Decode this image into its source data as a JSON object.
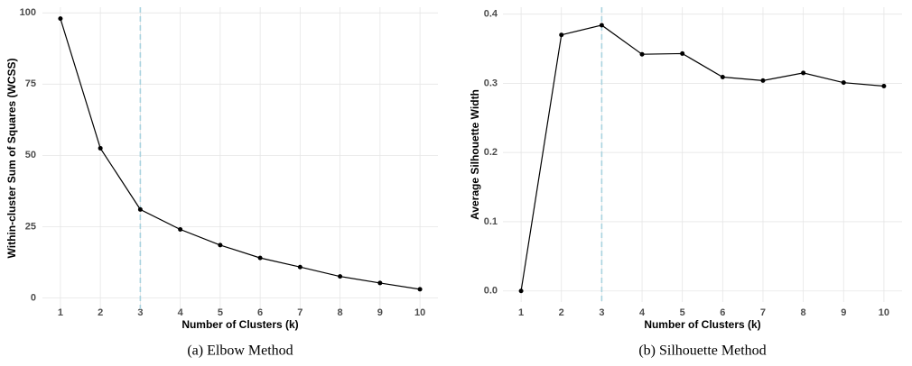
{
  "chart_data": [
    {
      "type": "line",
      "caption": "(a)  Elbow  Method",
      "x_label": "Number of Clusters (k)",
      "y_label": "Within-cluster Sum of Squares (WCSS)",
      "x": [
        1,
        2,
        3,
        4,
        5,
        6,
        7,
        8,
        9,
        10
      ],
      "xlim": [
        0.55,
        10.45
      ],
      "xticks": [
        1,
        2,
        3,
        4,
        5,
        6,
        7,
        8,
        9,
        10
      ],
      "series": [
        {
          "color": "#000000",
          "values": [
            98,
            52.5,
            31,
            24,
            18.5,
            14,
            10.8,
            7.5,
            5.2,
            3
          ]
        }
      ],
      "ylim": [
        -4,
        102
      ],
      "yticks": [
        0,
        25,
        50,
        75,
        100
      ],
      "grid": true,
      "vline": 3,
      "vline_color": "#a9d3df"
    },
    {
      "type": "line",
      "caption": "(b)  Silhouette  Method",
      "x_label": "Number of Clusters (k)",
      "y_label": "Average Silhouette Width",
      "x": [
        1,
        2,
        3,
        4,
        5,
        6,
        7,
        8,
        9,
        10
      ],
      "xlim": [
        0.55,
        10.45
      ],
      "xticks": [
        1,
        2,
        3,
        4,
        5,
        6,
        7,
        8,
        9,
        10
      ],
      "series": [
        {
          "color": "#000000",
          "values": [
            0,
            0.37,
            0.384,
            0.342,
            0.343,
            0.309,
            0.304,
            0.315,
            0.301,
            0.296
          ]
        }
      ],
      "ylim": [
        -0.016,
        0.41
      ],
      "yticks": [
        {
          "value": 0,
          "label": "0.0"
        },
        0.1,
        0.2,
        0.3,
        0.4
      ],
      "grid": true,
      "vline": 3,
      "vline_color": "#a9d3df"
    }
  ]
}
